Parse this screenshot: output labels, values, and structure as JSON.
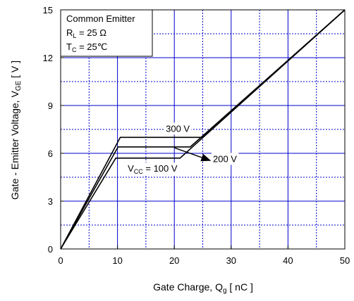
{
  "chart_data": {
    "type": "line",
    "xlabel": "Gate Charge,  Q",
    "xlabel_sub": "g",
    "xlabel_unit": " [ nC ]",
    "ylabel": "Gate - Emitter Voltage,  V",
    "ylabel_sub": "GE",
    "ylabel_unit": " [ V ]",
    "xlim": [
      0,
      50
    ],
    "ylim": [
      0,
      15
    ],
    "x_ticks": [
      0,
      10,
      20,
      30,
      40,
      50
    ],
    "y_ticks": [
      0,
      3,
      6,
      9,
      12,
      15
    ],
    "x_minor_step": 5,
    "y_minor_step": 1.5,
    "grid": true,
    "legend": {
      "placement": "top-left",
      "lines": [
        {
          "main": "Common Emitter",
          "sub": "",
          "rest": ""
        },
        {
          "main": "R",
          "sub": "L",
          "rest": " = 25 Ω"
        },
        {
          "main": "T",
          "sub": "C",
          "rest": " = 25℃"
        }
      ]
    },
    "series": [
      {
        "name": "300 V",
        "points": [
          [
            0,
            0
          ],
          [
            10.5,
            7.0
          ],
          [
            25,
            7.0
          ],
          [
            50,
            15
          ]
        ]
      },
      {
        "name": "200 V",
        "points": [
          [
            0,
            0
          ],
          [
            10.1,
            6.4
          ],
          [
            22.8,
            6.4
          ],
          [
            50,
            15
          ]
        ]
      },
      {
        "name": "100 V",
        "points": [
          [
            0,
            0
          ],
          [
            9.7,
            5.7
          ],
          [
            21,
            5.7
          ],
          [
            50,
            15
          ]
        ]
      }
    ],
    "annotations": [
      {
        "id": "ann-300v",
        "text": "300 V",
        "sub": "",
        "rest": "",
        "x": 18.5,
        "y": 7.35
      },
      {
        "id": "ann-200v",
        "text": "200 V",
        "sub": "",
        "rest": "",
        "x": 26.8,
        "y": 5.45
      },
      {
        "id": "ann-100v",
        "text": "V",
        "sub": "CC",
        "rest": " = 100 V",
        "x": 11.8,
        "y": 4.85
      }
    ],
    "arrow": {
      "from": [
        20,
        6.35
      ],
      "to": [
        26.3,
        5.55
      ]
    }
  }
}
